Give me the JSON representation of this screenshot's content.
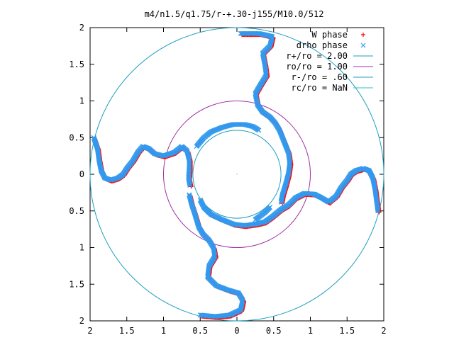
{
  "chart_data": {
    "type": "scatter",
    "title": "m4/n1.5/q1.75/r-+.30-j155/M10.0/512",
    "xlim": [
      -2,
      2
    ],
    "ylim": [
      -2,
      2
    ],
    "x_tick_values": [
      -2,
      -1.5,
      -1,
      -0.5,
      0,
      0.5,
      1,
      1.5,
      2
    ],
    "x_tick_labels": [
      "2",
      "1.5",
      "1",
      "0.5",
      "0",
      "0.5",
      "1",
      "1.5",
      "2"
    ],
    "y_tick_values": [
      2,
      1.5,
      1,
      0.5,
      0,
      -0.5,
      -1,
      -1.5,
      -2
    ],
    "y_tick_labels": [
      "2",
      "1.5",
      "1",
      "0.5",
      "0",
      "0.5",
      "1",
      "1.5",
      "2"
    ],
    "grid": false,
    "legend_position": "top-right",
    "legend": [
      {
        "label": "W phase",
        "marker": "+",
        "color": "#ff0000"
      },
      {
        "label": "drho phase",
        "marker": "x",
        "color": "#3399ee"
      },
      {
        "label": "r+/ro = 2.00",
        "color": "#1f9fbf"
      },
      {
        "label": "ro/ro = 1.00",
        "color": "#a030a0"
      },
      {
        "label": "r-/ro = .60",
        "color": "#1f9fbf"
      },
      {
        "label": "rc/ro = NaN",
        "color": "#30c0c0"
      }
    ],
    "circles": [
      {
        "name": "r+/ro = 2.00",
        "radius": 2.0,
        "color": "#1f9fbf"
      },
      {
        "name": "ro/ro = 1.00",
        "radius": 1.0,
        "color": "#a030a0"
      },
      {
        "name": "r-/ro = .60",
        "radius": 0.6,
        "color": "#1f9fbf"
      }
    ],
    "series": [
      {
        "name": "W phase",
        "color": "#ff0000",
        "marker": "+",
        "arms": [
          [
            [
              0.05,
              1.92
            ],
            [
              0.3,
              1.92
            ],
            [
              0.48,
              1.88
            ],
            [
              0.45,
              1.75
            ],
            [
              0.35,
              1.65
            ],
            [
              0.38,
              1.5
            ],
            [
              0.4,
              1.35
            ],
            [
              0.32,
              1.22
            ],
            [
              0.25,
              1.1
            ],
            [
              0.28,
              0.95
            ],
            [
              0.35,
              0.85
            ],
            [
              0.45,
              0.78
            ],
            [
              0.52,
              0.7
            ],
            [
              0.58,
              0.6
            ],
            [
              0.62,
              0.5
            ],
            [
              0.66,
              0.4
            ],
            [
              0.7,
              0.3
            ],
            [
              0.72,
              0.15
            ],
            [
              0.7,
              0.0
            ],
            [
              0.66,
              -0.15
            ],
            [
              0.62,
              -0.28
            ],
            [
              0.6,
              -0.38
            ]
          ],
          [
            [
              -1.95,
              0.5
            ],
            [
              -1.9,
              0.35
            ],
            [
              -1.88,
              0.2
            ],
            [
              -1.85,
              0.05
            ],
            [
              -1.8,
              -0.05
            ],
            [
              -1.72,
              -0.08
            ],
            [
              -1.62,
              -0.05
            ],
            [
              -1.55,
              0.0
            ],
            [
              -1.5,
              0.08
            ],
            [
              -1.42,
              0.18
            ],
            [
              -1.35,
              0.3
            ],
            [
              -1.28,
              0.38
            ],
            [
              -1.2,
              0.35
            ],
            [
              -1.12,
              0.28
            ],
            [
              -1.0,
              0.25
            ],
            [
              -0.85,
              0.3
            ],
            [
              -0.75,
              0.38
            ],
            [
              -0.68,
              0.32
            ],
            [
              -0.65,
              0.2
            ],
            [
              -0.65,
              0.08
            ],
            [
              -0.66,
              -0.05
            ],
            [
              -0.64,
              -0.15
            ]
          ],
          [
            [
              -0.5,
              -1.92
            ],
            [
              -0.3,
              -1.94
            ],
            [
              -0.1,
              -1.92
            ],
            [
              0.05,
              -1.85
            ],
            [
              0.08,
              -1.72
            ],
            [
              0.02,
              -1.62
            ],
            [
              -0.12,
              -1.58
            ],
            [
              -0.28,
              -1.52
            ],
            [
              -0.4,
              -1.4
            ],
            [
              -0.38,
              -1.25
            ],
            [
              -0.3,
              -1.12
            ],
            [
              -0.32,
              -1.0
            ],
            [
              -0.38,
              -0.9
            ],
            [
              -0.46,
              -0.82
            ],
            [
              -0.52,
              -0.72
            ],
            [
              -0.55,
              -0.62
            ],
            [
              -0.58,
              -0.52
            ],
            [
              -0.62,
              -0.4
            ],
            [
              -0.65,
              -0.28
            ]
          ],
          [
            [
              1.92,
              -0.5
            ],
            [
              1.9,
              -0.35
            ],
            [
              1.88,
              -0.2
            ],
            [
              1.85,
              -0.05
            ],
            [
              1.8,
              0.05
            ],
            [
              1.72,
              0.08
            ],
            [
              1.62,
              0.05
            ],
            [
              1.55,
              0.0
            ],
            [
              1.5,
              -0.08
            ],
            [
              1.42,
              -0.18
            ],
            [
              1.35,
              -0.3
            ],
            [
              1.25,
              -0.38
            ],
            [
              1.15,
              -0.32
            ],
            [
              1.05,
              -0.27
            ],
            [
              0.92,
              -0.26
            ],
            [
              0.8,
              -0.32
            ],
            [
              0.7,
              -0.42
            ],
            [
              0.6,
              -0.48
            ],
            [
              0.48,
              -0.58
            ],
            [
              0.38,
              -0.65
            ],
            [
              0.25,
              -0.68
            ],
            [
              0.1,
              -0.7
            ],
            [
              -0.05,
              -0.68
            ],
            [
              -0.2,
              -0.62
            ],
            [
              -0.35,
              -0.55
            ],
            [
              -0.45,
              -0.45
            ]
          ]
        ]
      },
      {
        "name": "drho phase",
        "color": "#3399ee",
        "marker": "x",
        "arms": [
          [
            [
              0.05,
              1.92
            ],
            [
              0.3,
              1.92
            ],
            [
              0.48,
              1.88
            ],
            [
              0.45,
              1.75
            ],
            [
              0.35,
              1.65
            ],
            [
              0.38,
              1.5
            ],
            [
              0.4,
              1.35
            ],
            [
              0.32,
              1.22
            ],
            [
              0.25,
              1.1
            ],
            [
              0.28,
              0.95
            ],
            [
              0.35,
              0.85
            ],
            [
              0.45,
              0.78
            ],
            [
              0.52,
              0.7
            ],
            [
              0.58,
              0.6
            ],
            [
              0.62,
              0.5
            ],
            [
              0.66,
              0.4
            ],
            [
              0.7,
              0.3
            ],
            [
              0.72,
              0.15
            ],
            [
              0.7,
              0.0
            ],
            [
              0.66,
              -0.15
            ],
            [
              0.62,
              -0.28
            ],
            [
              0.6,
              -0.38
            ]
          ],
          [
            [
              -1.95,
              0.5
            ],
            [
              -1.9,
              0.35
            ],
            [
              -1.88,
              0.2
            ],
            [
              -1.85,
              0.05
            ],
            [
              -1.8,
              -0.05
            ],
            [
              -1.72,
              -0.08
            ],
            [
              -1.62,
              -0.05
            ],
            [
              -1.55,
              0.0
            ],
            [
              -1.5,
              0.08
            ],
            [
              -1.42,
              0.18
            ],
            [
              -1.35,
              0.3
            ],
            [
              -1.28,
              0.38
            ],
            [
              -1.2,
              0.35
            ],
            [
              -1.12,
              0.28
            ],
            [
              -1.0,
              0.25
            ],
            [
              -0.85,
              0.3
            ],
            [
              -0.75,
              0.38
            ],
            [
              -0.68,
              0.32
            ],
            [
              -0.65,
              0.2
            ],
            [
              -0.65,
              0.08
            ],
            [
              -0.66,
              -0.05
            ],
            [
              -0.64,
              -0.15
            ]
          ],
          [
            [
              -0.5,
              -1.92
            ],
            [
              -0.3,
              -1.94
            ],
            [
              -0.1,
              -1.92
            ],
            [
              0.05,
              -1.85
            ],
            [
              0.08,
              -1.72
            ],
            [
              0.02,
              -1.62
            ],
            [
              -0.12,
              -1.58
            ],
            [
              -0.28,
              -1.52
            ],
            [
              -0.4,
              -1.4
            ],
            [
              -0.38,
              -1.25
            ],
            [
              -0.3,
              -1.12
            ],
            [
              -0.32,
              -1.0
            ],
            [
              -0.38,
              -0.9
            ],
            [
              -0.46,
              -0.82
            ],
            [
              -0.52,
              -0.72
            ],
            [
              -0.55,
              -0.62
            ],
            [
              -0.58,
              -0.52
            ],
            [
              -0.62,
              -0.4
            ],
            [
              -0.65,
              -0.28
            ]
          ],
          [
            [
              1.92,
              -0.5
            ],
            [
              1.9,
              -0.35
            ],
            [
              1.88,
              -0.2
            ],
            [
              1.85,
              -0.05
            ],
            [
              1.8,
              0.05
            ],
            [
              1.72,
              0.08
            ],
            [
              1.62,
              0.05
            ],
            [
              1.55,
              0.0
            ],
            [
              1.5,
              -0.08
            ],
            [
              1.42,
              -0.18
            ],
            [
              1.35,
              -0.3
            ],
            [
              1.25,
              -0.38
            ],
            [
              1.15,
              -0.32
            ],
            [
              1.05,
              -0.27
            ],
            [
              0.92,
              -0.26
            ],
            [
              0.8,
              -0.32
            ],
            [
              0.7,
              -0.42
            ],
            [
              0.6,
              -0.48
            ],
            [
              0.48,
              -0.58
            ],
            [
              0.38,
              -0.65
            ],
            [
              0.25,
              -0.68
            ],
            [
              0.1,
              -0.7
            ],
            [
              -0.05,
              -0.68
            ],
            [
              -0.2,
              -0.62
            ],
            [
              -0.35,
              -0.55
            ],
            [
              -0.45,
              -0.45
            ]
          ],
          [
            [
              -0.55,
              0.38
            ],
            [
              -0.45,
              0.5
            ],
            [
              -0.35,
              0.58
            ],
            [
              -0.2,
              0.64
            ],
            [
              -0.05,
              0.68
            ],
            [
              0.1,
              0.68
            ],
            [
              0.22,
              0.65
            ],
            [
              0.3,
              0.6
            ]
          ],
          [
            [
              0.45,
              -0.45
            ],
            [
              0.38,
              -0.52
            ],
            [
              0.25,
              -0.62
            ]
          ],
          [
            [
              -0.5,
              -0.35
            ],
            [
              -0.45,
              -0.45
            ],
            [
              -0.38,
              -0.52
            ]
          ]
        ]
      }
    ]
  }
}
